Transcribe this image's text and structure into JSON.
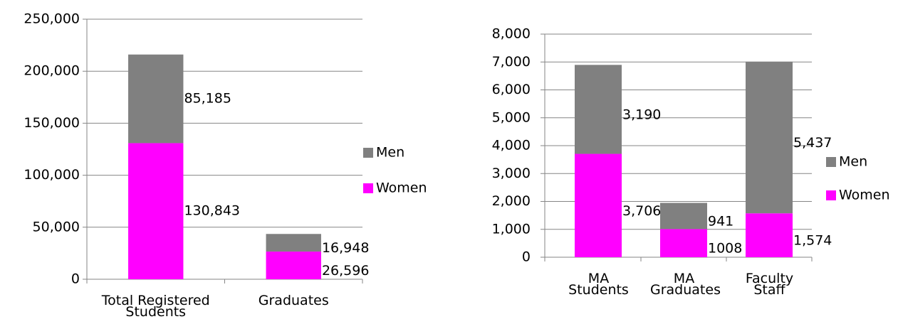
{
  "chart_data": [
    {
      "type": "bar",
      "stacked": true,
      "categories": [
        "Total Registered Students",
        "Graduates"
      ],
      "series": [
        {
          "name": "Women",
          "color": "#ff00ff",
          "values": [
            130843,
            26596
          ],
          "value_labels": [
            "130,843",
            "26,596"
          ]
        },
        {
          "name": "Men",
          "color": "#808080",
          "values": [
            85185,
            16948
          ],
          "value_labels": [
            "85,185",
            "16,948"
          ]
        }
      ],
      "ylim": [
        0,
        250000
      ],
      "yticks": [
        0,
        {
          "value": 50000,
          "label": "50,000"
        },
        {
          "value": 100000,
          "label": "100,000"
        },
        {
          "value": 150000,
          "label": "150,000"
        },
        {
          "value": 200000,
          "label": "200,000"
        },
        {
          "value": 250000,
          "label": "250,000"
        }
      ],
      "grid": true,
      "legend": "right"
    },
    {
      "type": "bar",
      "stacked": true,
      "categories": [
        "MA Students",
        "MA Graduates",
        "Faculty Staff"
      ],
      "series": [
        {
          "name": "Women",
          "color": "#ff00ff",
          "values": [
            3706,
            1008,
            1574
          ],
          "value_labels": [
            "3,706",
            "1008",
            "1,574"
          ]
        },
        {
          "name": "Men",
          "color": "#808080",
          "values": [
            3190,
            941,
            5437
          ],
          "value_labels": [
            "3,190",
            "941",
            "5,437"
          ]
        }
      ],
      "ylim": [
        0,
        8000
      ],
      "yticks": [
        0,
        {
          "value": 1000,
          "label": "1,000"
        },
        {
          "value": 2000,
          "label": "2,000"
        },
        {
          "value": 3000,
          "label": "3,000"
        },
        {
          "value": 4000,
          "label": "4,000"
        },
        {
          "value": 5000,
          "label": "5,000"
        },
        {
          "value": 6000,
          "label": "6,000"
        },
        {
          "value": 7000,
          "label": "7,000"
        },
        {
          "value": 8000,
          "label": "8,000"
        }
      ],
      "grid": true,
      "legend": "right"
    }
  ]
}
